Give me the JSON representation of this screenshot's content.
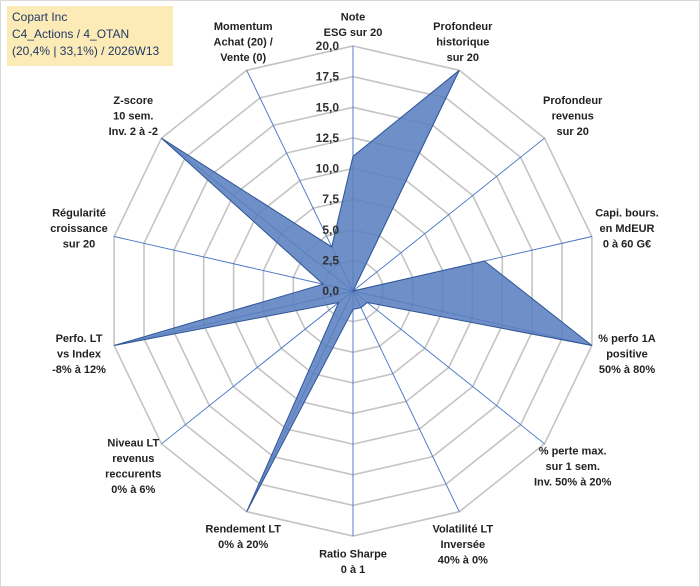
{
  "header": {
    "line1": "Copart Inc",
    "line2": "C4_Actions / 4_OTAN",
    "line3": "(20,4% | 33,1%) / 2026W13"
  },
  "chart_data": {
    "type": "radar",
    "title": "Copart Inc",
    "scale": {
      "min": 0,
      "max": 20,
      "step": 2.5
    },
    "ticks": [
      "0,0",
      "2,5",
      "5,0",
      "7,5",
      "10,0",
      "12,5",
      "15,0",
      "17,5",
      "20,0"
    ],
    "axes": [
      {
        "label": [
          "Note",
          "ESG sur 20"
        ],
        "value": 11
      },
      {
        "label": [
          "Profondeur",
          "historique",
          "sur 20"
        ],
        "value": 20
      },
      {
        "label": [
          "Profondeur",
          "revenus",
          "sur 20"
        ],
        "value": 0
      },
      {
        "label": [
          "Capi. bours.",
          "en MdEUR",
          "0 à 60 G€"
        ],
        "value": 11
      },
      {
        "label": [
          "% perfo 1A",
          "positive",
          "50% à 80%"
        ],
        "value": 20
      },
      {
        "label": [
          "% perte max.",
          "sur 1 sem.",
          "Inv. 50% à 20%"
        ],
        "value": 1.5
      },
      {
        "label": [
          "Volatilité LT",
          "Inversée",
          "40% à 0%"
        ],
        "value": 1.5
      },
      {
        "label": [
          "Ratio Sharpe",
          "0 à 1"
        ],
        "value": 1.5
      },
      {
        "label": [
          "Rendement LT",
          "0% à 20%"
        ],
        "value": 20
      },
      {
        "label": [
          "Niveau LT",
          "revenus",
          "reccurents",
          "0% à 6%"
        ],
        "value": 1.5
      },
      {
        "label": [
          "Perfo. LT",
          "vs Index",
          "-8% à 12%"
        ],
        "value": 20
      },
      {
        "label": [
          "Régularité",
          "croissance",
          "sur 20"
        ],
        "value": 2.5
      },
      {
        "label": [
          "Z-score",
          "10 sem.",
          "Inv. 2 à -2"
        ],
        "value": 20
      },
      {
        "label": [
          "Momentum",
          "Achat (20) /",
          "Vente (0)"
        ],
        "value": 4
      }
    ],
    "colors": {
      "fill": "#5a80bf",
      "stroke": "#2f5597",
      "axis": "#4472c4",
      "grid": "#c4c4c4"
    }
  }
}
